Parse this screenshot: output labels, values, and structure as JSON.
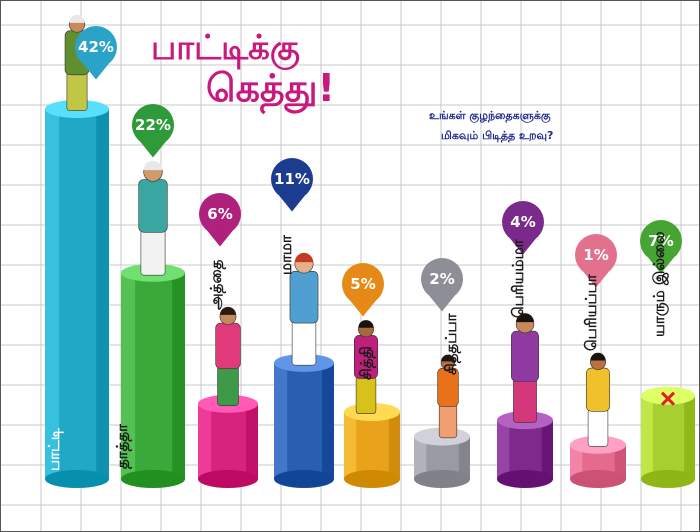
{
  "title_line1": "பாட்டிக்கு",
  "title_line2": "கெத்து!",
  "subtitle_line1": "உங்கள் குழந்தைகளுக்கு",
  "subtitle_line2": "மிகவும் பிடித்த உறவு?",
  "colors": {
    "title": "#c8197e",
    "subtitle": "#1e2a8c",
    "grid": "#c9c9c9"
  },
  "chart_data": {
    "type": "bar",
    "unit": "%",
    "categories": [
      "பாட்டி",
      "தாத்தா",
      "அத்தை",
      "மாமா",
      "சித்தி",
      "சித்தப்பா",
      "பெரியம்மா",
      "பெரியப்பா",
      "யாரும் இல்லை"
    ],
    "values": [
      42,
      22,
      6,
      11,
      5,
      2,
      4,
      1,
      7
    ],
    "labels": [
      "42%",
      "22%",
      "6%",
      "11%",
      "5%",
      "2%",
      "4%",
      "1%",
      "7%"
    ],
    "bar_colors": [
      "#1fa9c6",
      "#3ba83a",
      "#d8237e",
      "#2a5fb0",
      "#e8a31b",
      "#9a9aa3",
      "#7e2a8c",
      "#e46a8e",
      "#a7cf2f"
    ],
    "pin_colors": [
      "#2ba3c9",
      "#2e9a3a",
      "#b0217d",
      "#1c3c90",
      "#e58a18",
      "#8e8e96",
      "#7a2a8a",
      "#e2718e",
      "#46a532"
    ],
    "category_label_colors": [
      "#ffffff",
      "#1a1a1a",
      "#1a1a1a",
      "#1a1a1a",
      "#1a1a1a",
      "#1a1a1a",
      "#1a1a1a",
      "#1a1a1a",
      "#1a1a1a"
    ],
    "none_icon": "red-cross-icon"
  }
}
